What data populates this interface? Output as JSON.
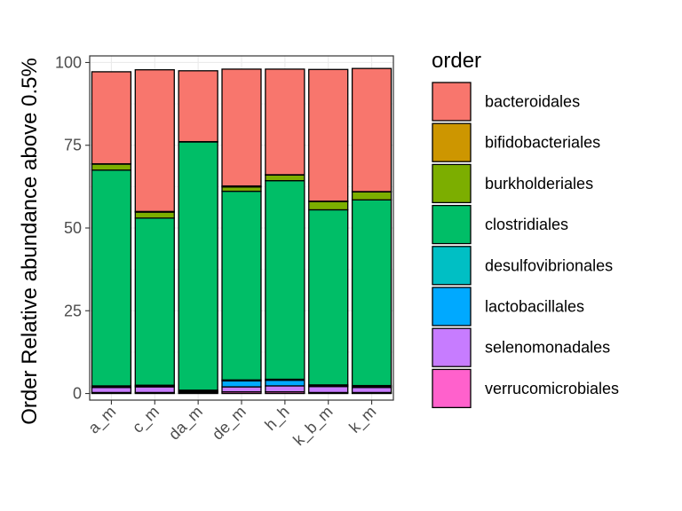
{
  "chart_data": {
    "type": "bar",
    "stacked": true,
    "ylabel": "Order Relative abundance above 0.5%",
    "xlabel": "",
    "ylim": [
      -2,
      102
    ],
    "yticks": [
      0,
      25,
      50,
      75,
      100
    ],
    "grid": true,
    "legend_position": "right",
    "legend_title": "order",
    "categories": [
      "a_m",
      "c_m",
      "da_m",
      "de_m",
      "h_h",
      "k_b_m",
      "k_m"
    ],
    "series": [
      {
        "name": "verrucomicrobiales",
        "color": "#FF61CC",
        "values": [
          0.3,
          0.3,
          0.3,
          0.5,
          0.5,
          0.3,
          0.3
        ]
      },
      {
        "name": "selenomonadales",
        "color": "#C77CFF",
        "values": [
          1.5,
          1.7,
          0.2,
          1.5,
          1.8,
          1.8,
          1.5
        ]
      },
      {
        "name": "lactobacillales",
        "color": "#00A9FF",
        "values": [
          0.2,
          0.2,
          0.2,
          1.8,
          1.7,
          0.2,
          0.3
        ]
      },
      {
        "name": "desulfovibrionales",
        "color": "#00BFC4",
        "values": [
          0.3,
          0.3,
          0.3,
          0.3,
          0.3,
          0.3,
          0.3
        ]
      },
      {
        "name": "clostridiales",
        "color": "#00BE67",
        "values": [
          65.2,
          50.5,
          75.0,
          57.0,
          60.0,
          52.9,
          56.1
        ]
      },
      {
        "name": "burkholderiales",
        "color": "#7CAE00",
        "values": [
          1.8,
          1.8,
          0.1,
          1.3,
          1.7,
          2.5,
          2.4
        ]
      },
      {
        "name": "bifidobacteriales",
        "color": "#CD9600",
        "values": [
          0.1,
          0.2,
          0.0,
          0.3,
          0.1,
          0.1,
          0.1
        ]
      },
      {
        "name": "bacteroidales",
        "color": "#F8766D",
        "values": [
          27.8,
          42.8,
          21.4,
          35.3,
          31.9,
          39.8,
          37.2
        ]
      }
    ],
    "legend_order": [
      "bacteroidales",
      "bifidobacteriales",
      "burkholderiales",
      "clostridiales",
      "desulfovibrionales",
      "lactobacillales",
      "selenomonadales",
      "verrucomicrobiales"
    ]
  }
}
